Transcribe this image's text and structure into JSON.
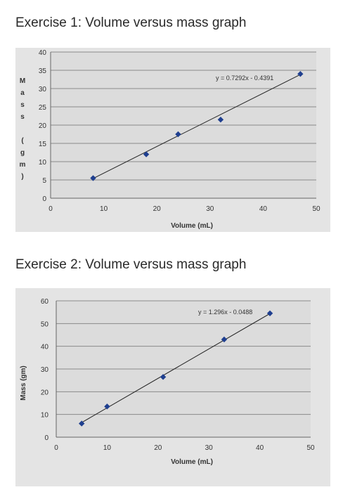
{
  "headings": {
    "exercise1": "Exercise 1: Volume versus mass graph",
    "exercise2": "Exercise 2: Volume versus mass graph"
  },
  "colors": {
    "plot_bg": "#dcdcdc",
    "outer_bg": "#e4e4e4",
    "grid": "#8a8a8a",
    "trend": "#222222",
    "marker": "#1f3f8f",
    "axis_text": "#333333"
  },
  "chart_data": [
    {
      "type": "scatter",
      "title": "",
      "xlabel": "Volume (mL)",
      "ylabel": "Mass (gm)",
      "ylabel_style": "stacked-letters",
      "xlim": [
        0,
        50
      ],
      "ylim": [
        0,
        40
      ],
      "x_ticks": [
        "0",
        "10",
        "20",
        "30",
        "40",
        "50"
      ],
      "y_ticks": [
        "0",
        "5",
        "10",
        "15",
        "20",
        "25",
        "30",
        "35",
        "40"
      ],
      "grid": "horizontal",
      "series": [
        {
          "x": [
            8,
            18,
            24,
            32,
            47
          ],
          "y": [
            5.5,
            12,
            17.5,
            21.5,
            34
          ]
        }
      ],
      "trendline": {
        "slope": 0.7292,
        "intercept": -0.4391,
        "x_from": 8,
        "x_to": 47
      },
      "equation": "y = 0.7292x - 0.4391"
    },
    {
      "type": "scatter",
      "title": "",
      "xlabel": "Volume (mL)",
      "ylabel": "Mass (gm)",
      "ylabel_style": "rotated",
      "xlim": [
        0,
        50
      ],
      "ylim": [
        0,
        60
      ],
      "x_ticks": [
        "0",
        "10",
        "20",
        "30",
        "40",
        "50"
      ],
      "y_ticks": [
        "0",
        "10",
        "20",
        "30",
        "40",
        "50",
        "60"
      ],
      "grid": "horizontal",
      "series": [
        {
          "x": [
            5,
            10,
            21,
            33,
            42
          ],
          "y": [
            6,
            13.5,
            26.5,
            43,
            54.5
          ]
        }
      ],
      "trendline": {
        "slope": 1.296,
        "intercept": -0.0488,
        "x_from": 5,
        "x_to": 42
      },
      "equation": "y = 1.296x - 0.0488"
    }
  ]
}
